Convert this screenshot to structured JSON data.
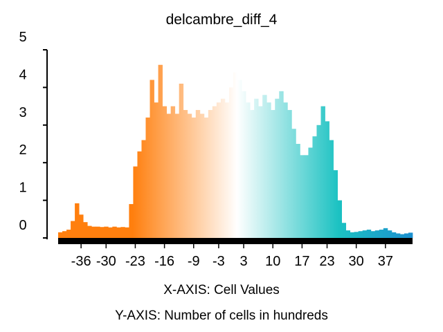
{
  "chart_data": {
    "type": "bar",
    "title": "delcambre_diff_4",
    "xlabel": "X-AXIS: Cell Values",
    "ylabel": "Y-AXIS: Number of cells in hundreds",
    "xlim": [
      -41,
      43
    ],
    "ylim": [
      0,
      5
    ],
    "x_ticks": [
      -36,
      -30,
      -23,
      -16,
      -9,
      -3,
      3,
      10,
      17,
      23,
      30,
      37
    ],
    "x_tick_labels": [
      "-36",
      "-30",
      "-23",
      "-16",
      "-9",
      "-3",
      "3",
      "10",
      "17",
      "23",
      "30",
      "37"
    ],
    "y_ticks": [
      0,
      1,
      2,
      3,
      4,
      5
    ],
    "y_tick_labels": [
      "0",
      "1",
      "2",
      "3",
      "4",
      "5"
    ],
    "grid": false,
    "legend": "none",
    "colors": {
      "negative": "#FF7F0E",
      "zero": "#FFFFFF",
      "positive_mid": "#1CC2C2",
      "positive_end": "#1B8FCF"
    },
    "bins": [
      {
        "x": -41,
        "y": 0.15
      },
      {
        "x": -40,
        "y": 0.18
      },
      {
        "x": -39,
        "y": 0.22
      },
      {
        "x": -38,
        "y": 0.45
      },
      {
        "x": -37,
        "y": 0.92
      },
      {
        "x": -36,
        "y": 0.62
      },
      {
        "x": -35,
        "y": 0.42
      },
      {
        "x": -34,
        "y": 0.32
      },
      {
        "x": -33,
        "y": 0.3
      },
      {
        "x": -32,
        "y": 0.3
      },
      {
        "x": -31,
        "y": 0.29
      },
      {
        "x": -30,
        "y": 0.3
      },
      {
        "x": -29,
        "y": 0.28
      },
      {
        "x": -28,
        "y": 0.3
      },
      {
        "x": -27,
        "y": 0.28
      },
      {
        "x": -26,
        "y": 0.29
      },
      {
        "x": -25,
        "y": 0.28
      },
      {
        "x": -24,
        "y": 0.9
      },
      {
        "x": -23,
        "y": 1.9
      },
      {
        "x": -22,
        "y": 2.3
      },
      {
        "x": -21,
        "y": 2.6
      },
      {
        "x": -20,
        "y": 3.2
      },
      {
        "x": -19,
        "y": 4.2
      },
      {
        "x": -18,
        "y": 3.6
      },
      {
        "x": -17,
        "y": 4.6
      },
      {
        "x": -16,
        "y": 3.5
      },
      {
        "x": -15,
        "y": 3.3
      },
      {
        "x": -14,
        "y": 3.5
      },
      {
        "x": -13,
        "y": 3.3
      },
      {
        "x": -12,
        "y": 4.1
      },
      {
        "x": -11,
        "y": 3.4
      },
      {
        "x": -10,
        "y": 3.3
      },
      {
        "x": -9,
        "y": 3.2
      },
      {
        "x": -8,
        "y": 3.4
      },
      {
        "x": -7,
        "y": 3.3
      },
      {
        "x": -6,
        "y": 3.2
      },
      {
        "x": -5,
        "y": 3.4
      },
      {
        "x": -4,
        "y": 3.5
      },
      {
        "x": -3,
        "y": 3.6
      },
      {
        "x": -2,
        "y": 3.7
      },
      {
        "x": -1,
        "y": 3.6
      },
      {
        "x": 0,
        "y": 4.0
      },
      {
        "x": 1,
        "y": 4.4
      },
      {
        "x": 2,
        "y": 4.2
      },
      {
        "x": 3,
        "y": 3.9
      },
      {
        "x": 4,
        "y": 3.6
      },
      {
        "x": 5,
        "y": 3.4
      },
      {
        "x": 6,
        "y": 3.7
      },
      {
        "x": 7,
        "y": 3.5
      },
      {
        "x": 8,
        "y": 3.8
      },
      {
        "x": 9,
        "y": 3.6
      },
      {
        "x": 10,
        "y": 3.4
      },
      {
        "x": 11,
        "y": 3.7
      },
      {
        "x": 12,
        "y": 3.9
      },
      {
        "x": 13,
        "y": 3.6
      },
      {
        "x": 14,
        "y": 3.4
      },
      {
        "x": 15,
        "y": 2.9
      },
      {
        "x": 16,
        "y": 2.5
      },
      {
        "x": 17,
        "y": 2.2
      },
      {
        "x": 18,
        "y": 2.2
      },
      {
        "x": 19,
        "y": 2.4
      },
      {
        "x": 20,
        "y": 2.7
      },
      {
        "x": 21,
        "y": 3.0
      },
      {
        "x": 22,
        "y": 3.5
      },
      {
        "x": 23,
        "y": 3.1
      },
      {
        "x": 24,
        "y": 2.6
      },
      {
        "x": 25,
        "y": 1.8
      },
      {
        "x": 26,
        "y": 1.0
      },
      {
        "x": 27,
        "y": 0.4
      },
      {
        "x": 28,
        "y": 0.2
      },
      {
        "x": 29,
        "y": 0.15
      },
      {
        "x": 30,
        "y": 0.16
      },
      {
        "x": 31,
        "y": 0.18
      },
      {
        "x": 32,
        "y": 0.2
      },
      {
        "x": 33,
        "y": 0.22
      },
      {
        "x": 34,
        "y": 0.18
      },
      {
        "x": 35,
        "y": 0.2
      },
      {
        "x": 36,
        "y": 0.22
      },
      {
        "x": 37,
        "y": 0.26
      },
      {
        "x": 38,
        "y": 0.2
      },
      {
        "x": 39,
        "y": 0.15
      },
      {
        "x": 40,
        "y": 0.12
      },
      {
        "x": 41,
        "y": 0.1
      },
      {
        "x": 42,
        "y": 0.12
      },
      {
        "x": 43,
        "y": 0.14
      }
    ]
  }
}
